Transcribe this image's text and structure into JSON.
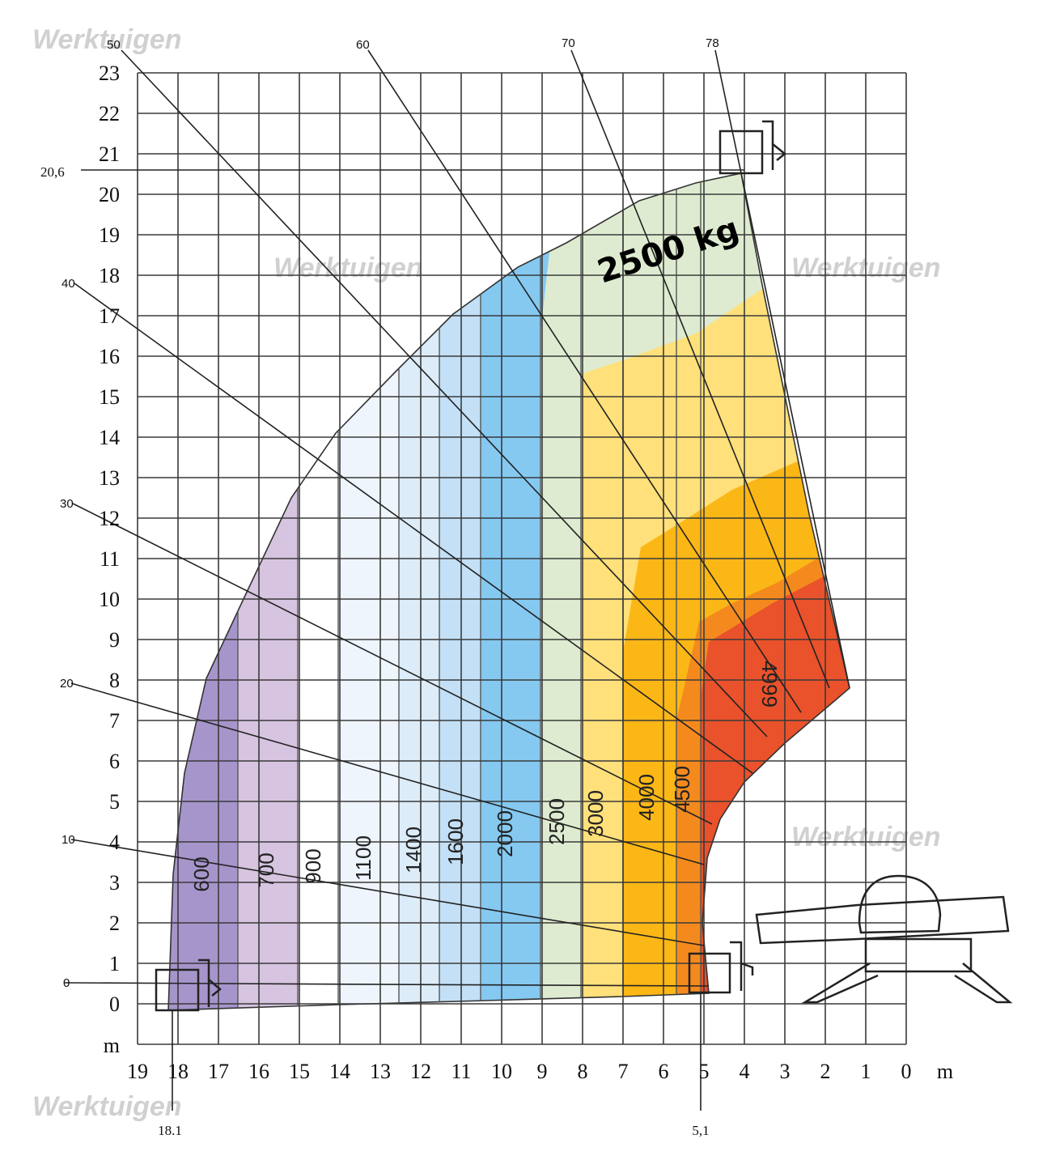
{
  "watermark": "Werktuigen",
  "chart_data": {
    "type": "area",
    "x_unit": "m",
    "y_unit": "m",
    "x_ticks": [
      19,
      18,
      17,
      16,
      15,
      14,
      13,
      12,
      11,
      10,
      9,
      8,
      7,
      6,
      5,
      4,
      3,
      2,
      1,
      0
    ],
    "y_ticks": [
      0,
      1,
      2,
      3,
      4,
      5,
      6,
      7,
      8,
      9,
      10,
      11,
      12,
      13,
      14,
      15,
      16,
      17,
      18,
      19,
      20,
      21,
      22,
      23
    ],
    "xlim": [
      19,
      0
    ],
    "ylim": [
      -1,
      23
    ],
    "special_labels": {
      "max_height": "20,6",
      "max_reach": "18.1",
      "min_reach": "5,1"
    },
    "zones": [
      {
        "label": "600",
        "color": "#a695cb",
        "x_range": [
          18.1,
          16.5
        ]
      },
      {
        "label": "700",
        "color": "#d6c4e0",
        "x_range": [
          16.5,
          15
        ]
      },
      {
        "label": "900",
        "color": "#ffffff",
        "x_range": [
          15,
          14
        ]
      },
      {
        "label": "1100",
        "color": "#eef5fc",
        "x_range": [
          14,
          12.5
        ]
      },
      {
        "label": "1400",
        "color": "#dcecf9",
        "x_range": [
          12.5,
          11.5
        ]
      },
      {
        "label": "1600",
        "color": "#c3e0f6",
        "x_range": [
          11.5,
          10.5
        ]
      },
      {
        "label": "2000",
        "color": "#85c9f1",
        "x_range": [
          10.5,
          9
        ]
      },
      {
        "label": "2500",
        "color": "#deebd0",
        "x_range": [
          9,
          8
        ]
      },
      {
        "label": "3000",
        "color": "#ffe07a",
        "x_range": [
          8,
          7
        ]
      },
      {
        "label": "4000",
        "color": "#fbb716",
        "x_range": [
          7,
          5.6
        ]
      },
      {
        "label": "4500",
        "color": "#f48a1e",
        "x_range": [
          5.6,
          5.1
        ]
      },
      {
        "label": "4999",
        "color": "#e9522b",
        "x_range": [
          5,
          1.4
        ]
      }
    ],
    "annotation": "2500 kg",
    "boom_angles": [
      "0",
      "10",
      "20",
      "30",
      "40",
      "50",
      "60",
      "70",
      "78"
    ],
    "grid": true
  }
}
